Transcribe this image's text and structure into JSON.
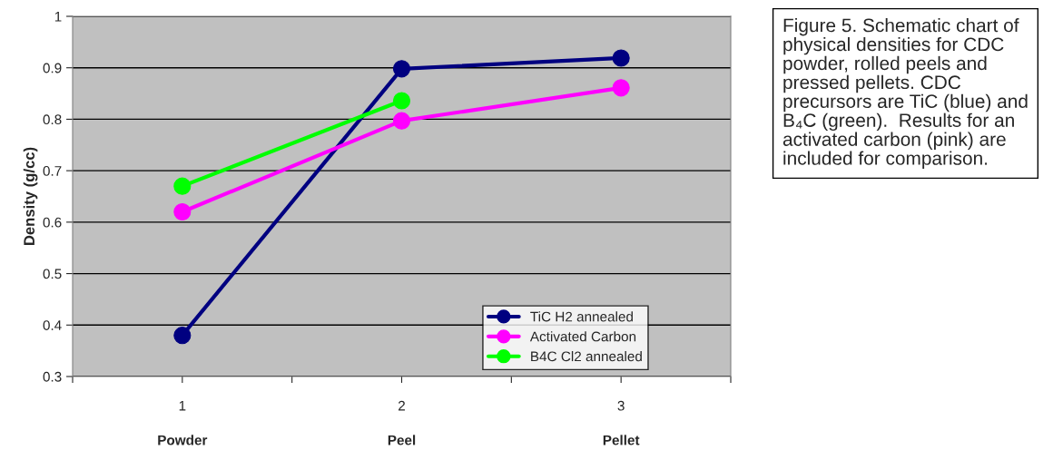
{
  "chart_data": {
    "type": "line",
    "ylabel": "Density (g/cc)",
    "x": [
      1,
      2,
      3
    ],
    "xlim": [
      0.5,
      3.5
    ],
    "xticks": [
      {
        "value": 0.5,
        "label": null
      },
      1,
      {
        "value": 1.5,
        "label": null
      },
      2,
      {
        "value": 2.5,
        "label": null
      },
      3,
      {
        "value": 3.5,
        "label": null
      }
    ],
    "ylim": [
      0.3,
      1
    ],
    "yticks": [
      0.3,
      0.4,
      0.5,
      0.6,
      0.7,
      0.8,
      0.9,
      1
    ],
    "series": [
      {
        "name": "TiC H2 annealed",
        "color": "#000080",
        "values": [
          0.38,
          0.898,
          0.919
        ]
      },
      {
        "name": "Activated Carbon",
        "color": "#ff00ff",
        "values": [
          0.62,
          0.797,
          0.861
        ]
      },
      {
        "name": "B4C Cl2 annealed",
        "color": "#00ff00",
        "values": [
          0.67,
          0.836,
          null
        ]
      }
    ],
    "annotations": [
      "Powder",
      "Peel",
      "Pellet",
      "Figure 5. Schematic chart of physical densities for CDC powder, rolled peels and pressed pellets. CDC precursors are TiC (blue) and B₄C (green).  Results for an activated carbon (pink) are included for comparison."
    ],
    "grid": "y",
    "legend": "bottom right",
    "marker": "circle",
    "line_style": "solid"
  }
}
